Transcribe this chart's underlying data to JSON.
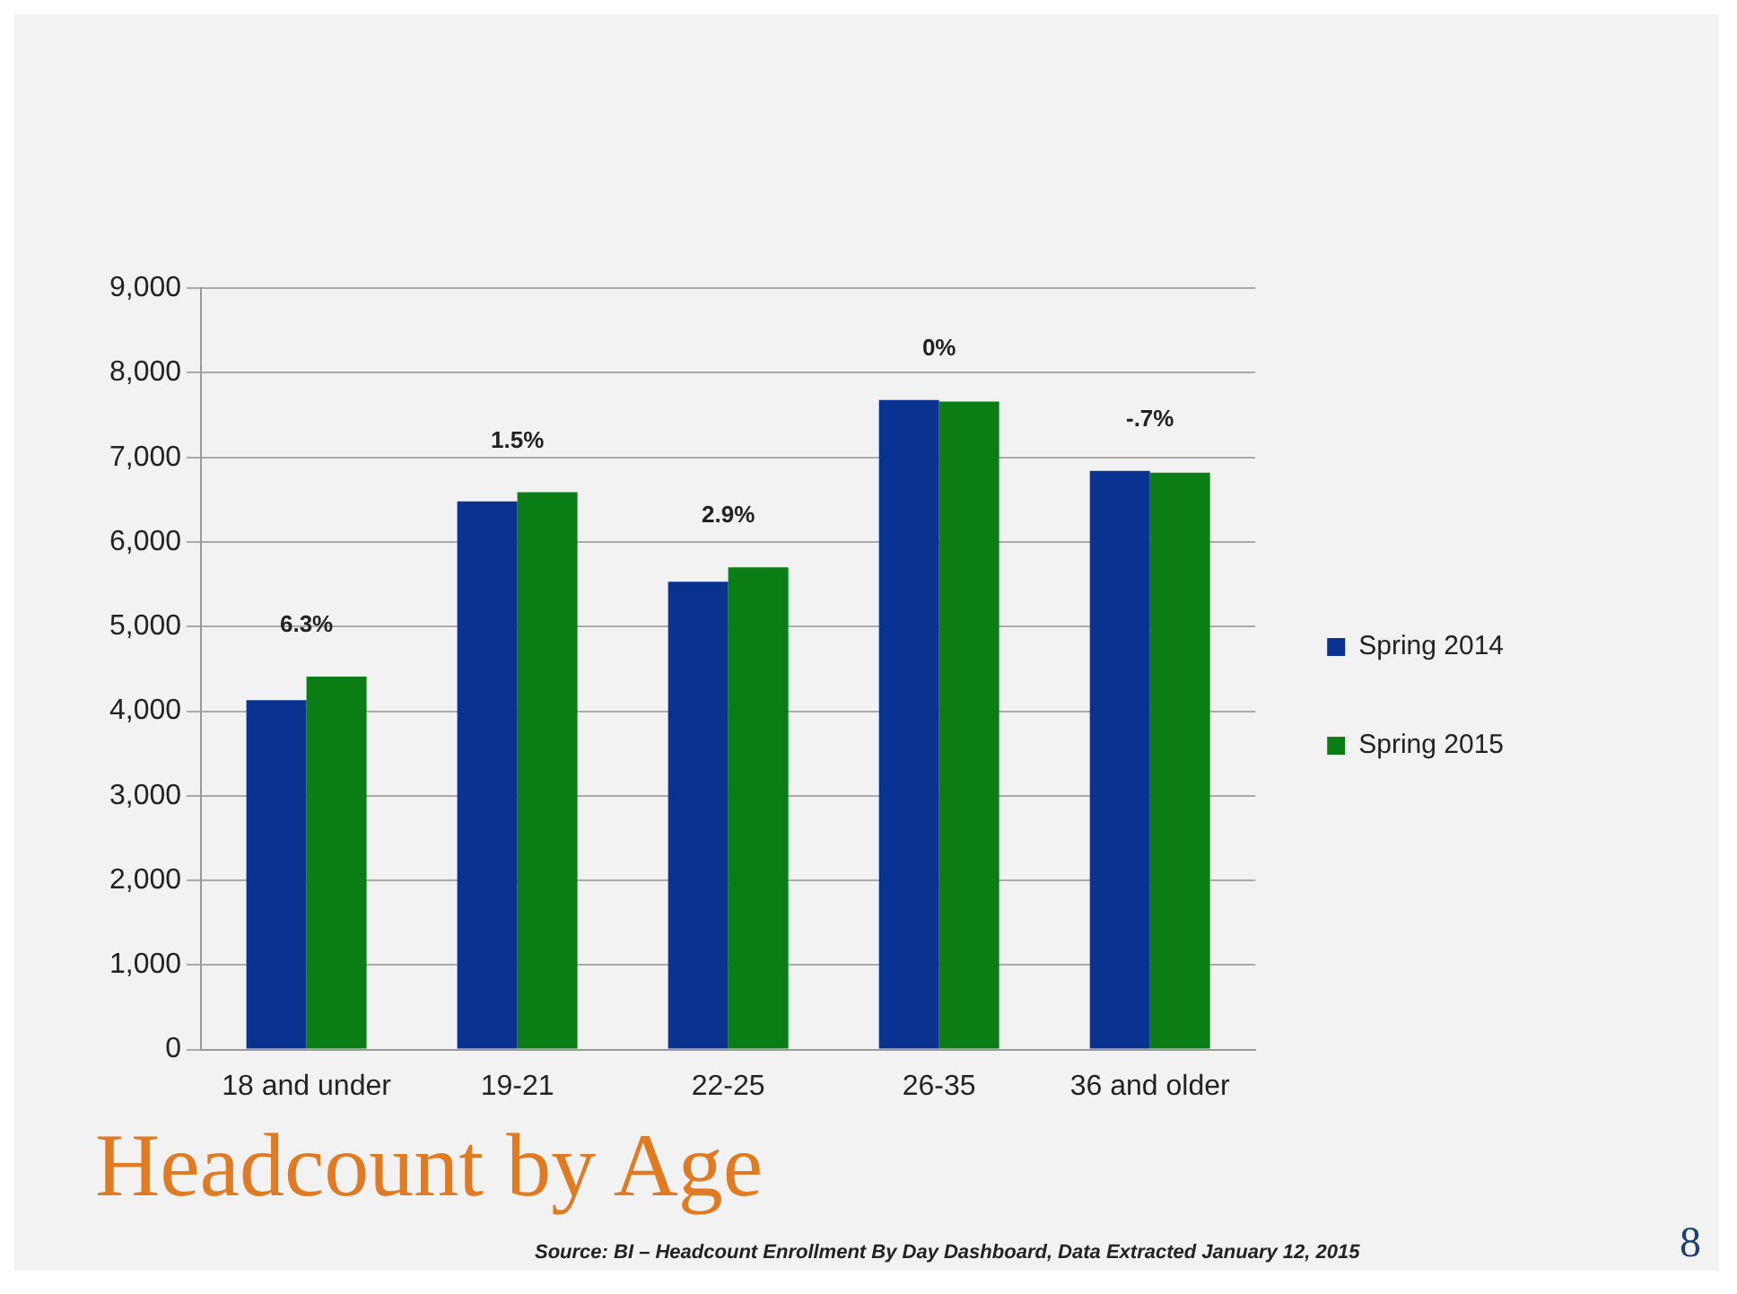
{
  "chart_data": {
    "type": "bar",
    "title": "Headcount by Age",
    "categories": [
      "18 and under",
      "19-21",
      "22-25",
      "26-35",
      "36 and older"
    ],
    "series": [
      {
        "name": "Spring 2014",
        "color": "#0a3391",
        "values": [
          4130,
          6480,
          5530,
          7680,
          6840
        ]
      },
      {
        "name": "Spring 2015",
        "color": "#0a7d14",
        "values": [
          4410,
          6590,
          5700,
          7660,
          6820
        ]
      }
    ],
    "ylim": [
      0,
      9000
    ],
    "yticks": [
      {
        "value": 0,
        "label": "0"
      },
      {
        "value": 1000,
        "label": "1,000"
      },
      {
        "value": 2000,
        "label": "2,000"
      },
      {
        "value": 3000,
        "label": "3,000"
      },
      {
        "value": 4000,
        "label": "4,000"
      },
      {
        "value": 5000,
        "label": "5,000"
      },
      {
        "value": 6000,
        "label": "6,000"
      },
      {
        "value": 7000,
        "label": "7,000"
      },
      {
        "value": 8000,
        "label": "8,000"
      },
      {
        "value": 9000,
        "label": "9,000"
      }
    ],
    "grid": "y",
    "legend": "right",
    "annotations": [
      {
        "text": "6.3%",
        "x": "18 and under",
        "y": 4410
      },
      {
        "text": "1.5%",
        "x": "19-21",
        "y": 6590
      },
      {
        "text": "2.9%",
        "x": "22-25",
        "y": 5700
      },
      {
        "text": "0%",
        "x": "26-35",
        "y": 7680
      },
      {
        "text": "-.7%",
        "x": "36 and older",
        "y": 6840
      },
      "Source: BI – Headcount Enrollment By Day Dashboard,  Data Extracted January 12, 2015",
      "8"
    ]
  }
}
